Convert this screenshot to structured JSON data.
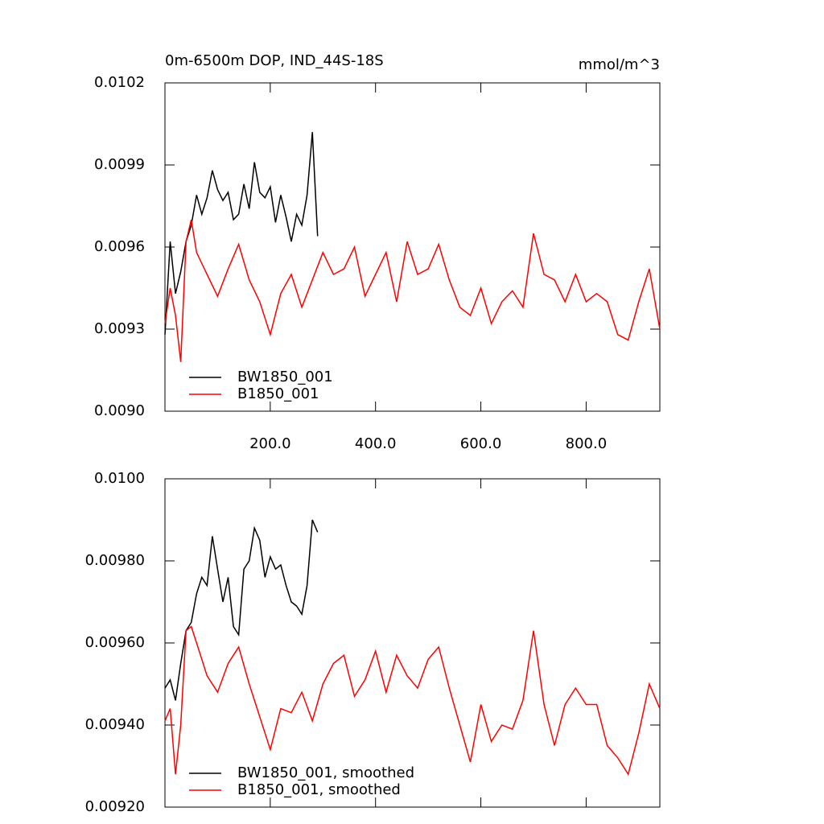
{
  "chart_data": [
    {
      "type": "line",
      "title": "0m-6500m DOP, IND_44S-18S",
      "units_label": "mmol/m^3",
      "xlim": [
        0,
        940
      ],
      "xticks": [
        {
          "value": 200,
          "label": "200.0"
        },
        {
          "value": 400,
          "label": "400.0"
        },
        {
          "value": 600,
          "label": "600.0"
        },
        {
          "value": 800,
          "label": "800.0"
        }
      ],
      "ylim": [
        0.009,
        0.0102
      ],
      "yticks": [
        {
          "value": 0.009,
          "label": "0.0090"
        },
        0.0093,
        0.0096,
        0.0099,
        0.0102
      ],
      "legend": "lower left",
      "series": [
        {
          "name": "BW1850_001",
          "color": "#000000",
          "x": [
            0,
            10,
            20,
            30,
            40,
            50,
            60,
            70,
            80,
            90,
            100,
            110,
            120,
            130,
            140,
            150,
            160,
            170,
            180,
            190,
            200,
            210,
            220,
            230,
            240,
            250,
            260,
            270,
            280,
            290
          ],
          "values": [
            0.00928,
            0.00962,
            0.00943,
            0.00951,
            0.00962,
            0.00968,
            0.00979,
            0.00972,
            0.00978,
            0.00988,
            0.00981,
            0.00977,
            0.0098,
            0.0097,
            0.00972,
            0.00983,
            0.00974,
            0.00991,
            0.0098,
            0.00978,
            0.00982,
            0.00969,
            0.00979,
            0.00971,
            0.00962,
            0.00972,
            0.00968,
            0.00979,
            0.01002,
            0.00964
          ]
        },
        {
          "name": "B1850_001",
          "color": "#ff0000",
          "x": [
            0,
            10,
            20,
            30,
            40,
            50,
            60,
            80,
            100,
            120,
            140,
            160,
            180,
            200,
            220,
            240,
            260,
            280,
            300,
            320,
            340,
            360,
            380,
            400,
            420,
            440,
            460,
            480,
            500,
            520,
            540,
            560,
            580,
            600,
            620,
            640,
            660,
            680,
            700,
            720,
            740,
            760,
            780,
            800,
            820,
            840,
            860,
            880,
            900,
            920,
            940
          ],
          "values": [
            0.00932,
            0.00945,
            0.00935,
            0.00918,
            0.00962,
            0.0097,
            0.00958,
            0.0095,
            0.00942,
            0.00952,
            0.00961,
            0.00948,
            0.0094,
            0.00928,
            0.00943,
            0.0095,
            0.00938,
            0.00948,
            0.00958,
            0.0095,
            0.00952,
            0.0096,
            0.00942,
            0.0095,
            0.00958,
            0.0094,
            0.00962,
            0.0095,
            0.00952,
            0.00961,
            0.00948,
            0.00938,
            0.00935,
            0.00945,
            0.00932,
            0.0094,
            0.00944,
            0.00938,
            0.00965,
            0.0095,
            0.00948,
            0.0094,
            0.0095,
            0.0094,
            0.00943,
            0.0094,
            0.00928,
            0.00926,
            0.0094,
            0.00952,
            0.0093
          ]
        }
      ]
    },
    {
      "type": "line",
      "xlim": [
        0,
        940
      ],
      "xticks": [
        200,
        400,
        600,
        800
      ],
      "xtick_labels": false,
      "ylim": [
        0.0092,
        0.01
      ],
      "yticks": [
        {
          "value": 0.0092,
          "label": "0.00920"
        },
        {
          "value": 0.0094,
          "label": "0.00940"
        },
        {
          "value": 0.0096,
          "label": "0.00960"
        },
        {
          "value": 0.0098,
          "label": "0.00980"
        },
        {
          "value": 0.01,
          "label": "0.0100"
        }
      ],
      "legend": "lower left",
      "series": [
        {
          "name": "BW1850_001, smoothed",
          "color": "#000000",
          "x": [
            0,
            10,
            20,
            30,
            40,
            50,
            60,
            70,
            80,
            90,
            100,
            110,
            120,
            130,
            140,
            150,
            160,
            170,
            180,
            190,
            200,
            210,
            220,
            230,
            240,
            250,
            260,
            270,
            280,
            290
          ],
          "values": [
            0.00949,
            0.00951,
            0.00946,
            0.00955,
            0.00963,
            0.00965,
            0.00972,
            0.00976,
            0.00974,
            0.00986,
            0.00978,
            0.0097,
            0.00976,
            0.00964,
            0.00962,
            0.00978,
            0.0098,
            0.00988,
            0.00985,
            0.00976,
            0.00981,
            0.00978,
            0.00979,
            0.00974,
            0.0097,
            0.00969,
            0.00967,
            0.00974,
            0.0099,
            0.00987
          ]
        },
        {
          "name": "B1850_001, smoothed",
          "color": "#ff0000",
          "x": [
            0,
            10,
            20,
            30,
            40,
            50,
            60,
            80,
            100,
            120,
            140,
            160,
            180,
            200,
            220,
            240,
            260,
            280,
            300,
            320,
            340,
            360,
            380,
            400,
            420,
            440,
            460,
            480,
            500,
            520,
            540,
            560,
            580,
            600,
            620,
            640,
            660,
            680,
            700,
            720,
            740,
            760,
            780,
            800,
            820,
            840,
            860,
            880,
            900,
            920,
            940
          ],
          "values": [
            0.00941,
            0.00944,
            0.00928,
            0.0094,
            0.00963,
            0.00964,
            0.0096,
            0.00952,
            0.00948,
            0.00955,
            0.00959,
            0.0095,
            0.00942,
            0.00934,
            0.00944,
            0.00943,
            0.00948,
            0.00941,
            0.0095,
            0.00955,
            0.00957,
            0.00947,
            0.00951,
            0.00958,
            0.00948,
            0.00957,
            0.00952,
            0.00949,
            0.00956,
            0.00959,
            0.00949,
            0.0094,
            0.00931,
            0.00945,
            0.00936,
            0.0094,
            0.00939,
            0.00946,
            0.00963,
            0.00945,
            0.00935,
            0.00945,
            0.00949,
            0.00945,
            0.00945,
            0.00935,
            0.00932,
            0.00928,
            0.00938,
            0.0095,
            0.00944
          ]
        }
      ]
    }
  ]
}
